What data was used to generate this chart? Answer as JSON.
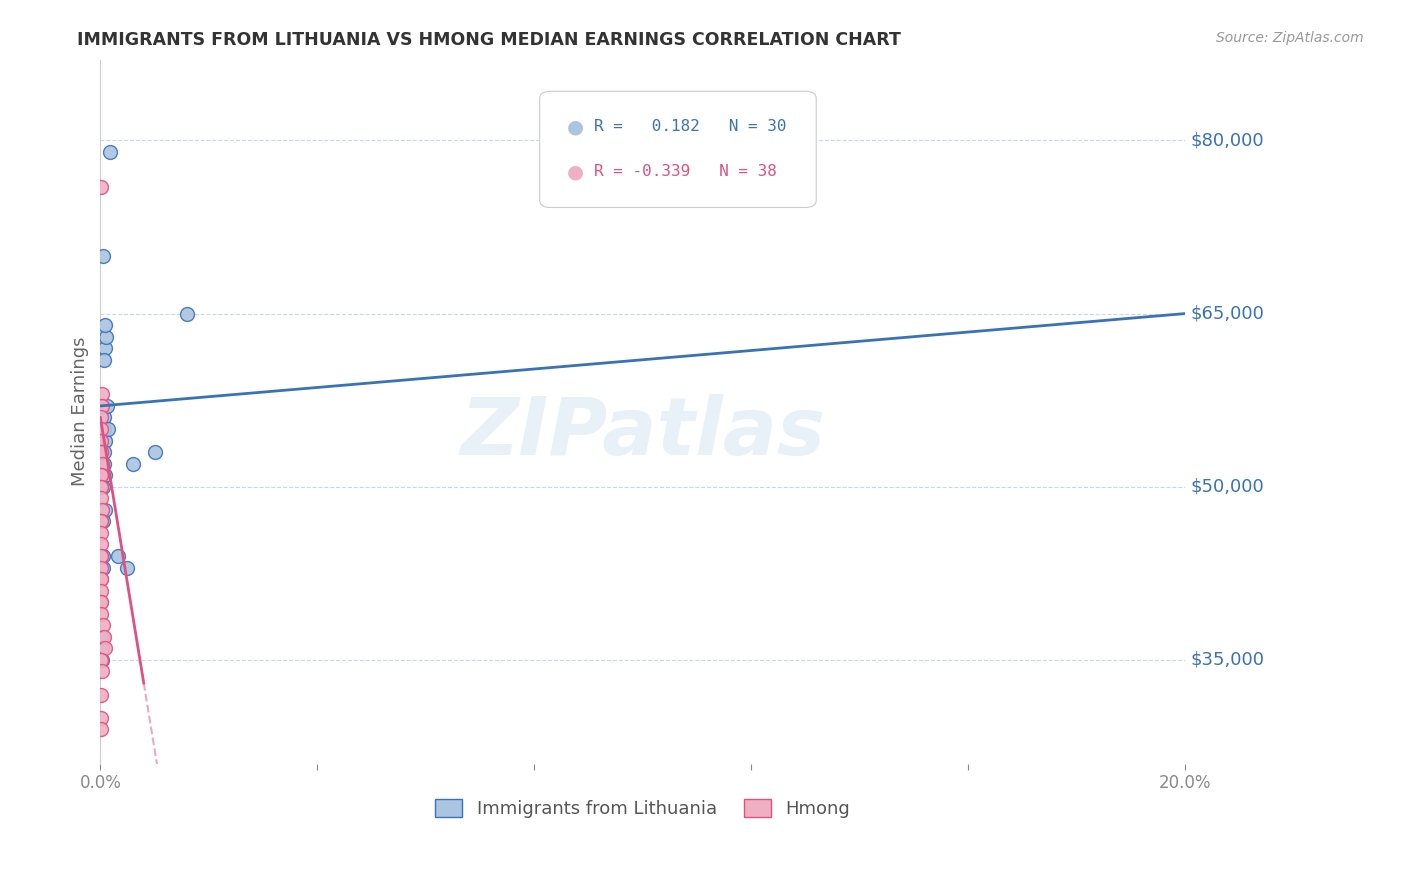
{
  "title": "IMMIGRANTS FROM LITHUANIA VS HMONG MEDIAN EARNINGS CORRELATION CHART",
  "source": "Source: ZipAtlas.com",
  "ylabel": "Median Earnings",
  "watermark": "ZIPatlas",
  "y_ticks": [
    35000,
    50000,
    65000,
    80000
  ],
  "y_tick_labels": [
    "$35,000",
    "$50,000",
    "$65,000",
    "$80,000"
  ],
  "x_lim": [
    0.0,
    0.2
  ],
  "y_lim": [
    26000,
    87000
  ],
  "r_lithuania": 0.182,
  "n_lithuania": 30,
  "r_hmong": -0.339,
  "n_hmong": 38,
  "scatter_lithuania_x": [
    0.0018,
    0.0005,
    0.0008,
    0.001,
    0.0008,
    0.0006,
    0.0003,
    0.0003,
    0.0006,
    0.0004,
    0.0007,
    0.0008,
    0.0012,
    0.0015,
    0.0007,
    0.0007,
    0.0009,
    0.0005,
    0.0009,
    0.0004,
    0.0004,
    0.0005,
    0.0003,
    0.0003,
    0.0003,
    0.006,
    0.01,
    0.016,
    0.005,
    0.0033
  ],
  "scatter_lithuania_y": [
    79000,
    70000,
    62000,
    63000,
    64000,
    61000,
    57000,
    57000,
    56000,
    55000,
    55000,
    54000,
    57000,
    55000,
    53000,
    52000,
    51000,
    50000,
    48000,
    47000,
    44000,
    43000,
    37000,
    36000,
    35000,
    52000,
    53000,
    65000,
    43000,
    44000
  ],
  "scatter_hmong_x": [
    0.0001,
    0.0003,
    0.0002,
    0.0003,
    0.0002,
    0.0001,
    0.0001,
    0.0001,
    0.0002,
    0.0003,
    0.0001,
    0.0001,
    0.0001,
    0.0001,
    0.0002,
    0.0003,
    0.0002,
    0.0002,
    0.0001,
    0.0001,
    0.0001,
    0.0001,
    0.0001,
    0.0001,
    0.0001,
    0.0001,
    0.0001,
    0.0001,
    0.0001,
    0.0005,
    0.0007,
    0.0008,
    0.0002,
    0.0002,
    0.0003,
    0.0001,
    0.0001,
    0.0001
  ],
  "scatter_hmong_y": [
    76000,
    58000,
    57000,
    57000,
    56000,
    55000,
    54000,
    53000,
    53000,
    52000,
    51000,
    51000,
    50000,
    50000,
    49000,
    48000,
    47000,
    47000,
    46000,
    45000,
    44000,
    44000,
    43000,
    42000,
    42000,
    41000,
    40000,
    40000,
    39000,
    38000,
    37000,
    36000,
    35000,
    35000,
    34000,
    32000,
    30000,
    29000
  ],
  "color_lithuania": "#aac4e2",
  "color_lithuania_line": "#3a72b8",
  "color_hmong": "#f0b0c4",
  "color_hmong_line": "#e05080",
  "color_ytick": "#3a72b8",
  "color_title": "#333333",
  "background_color": "#ffffff",
  "grid_color": "#c8d8e8",
  "marker_size": 100,
  "marker_edge_width": 1.0,
  "lith_trend_y0": 57000,
  "lith_trend_y1": 65000,
  "hmong_trend_x0": 0.0,
  "hmong_trend_x1": 0.008,
  "hmong_trend_y0": 56000,
  "hmong_trend_y1": 33000
}
